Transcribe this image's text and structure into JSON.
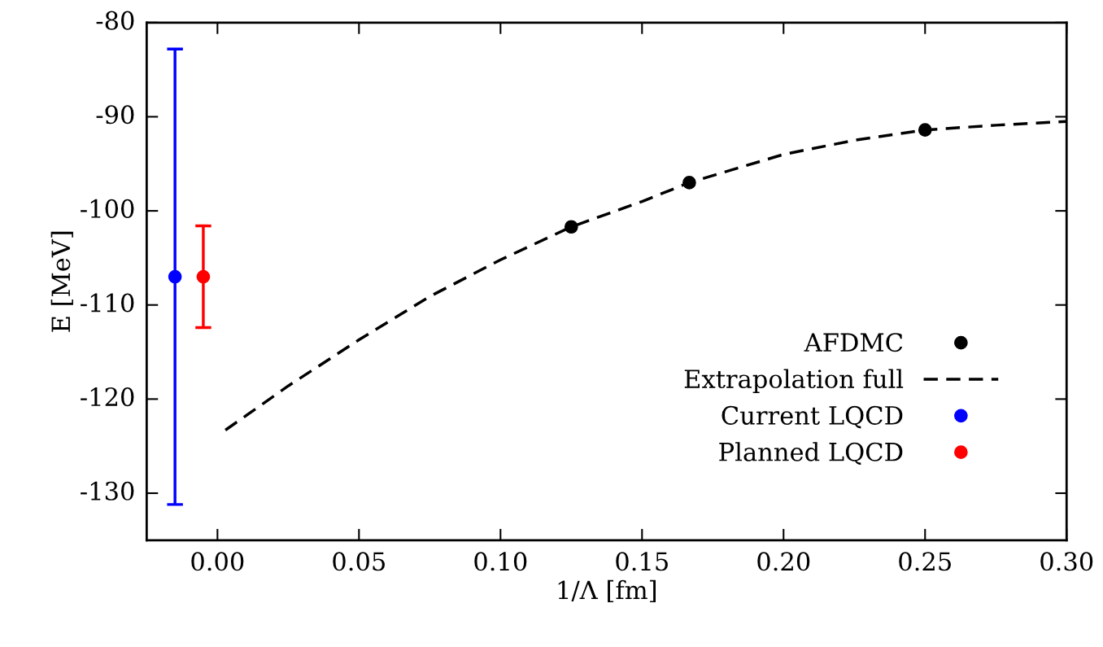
{
  "chart_data": {
    "type": "scatter",
    "xlabel": "1/Λ [fm]",
    "ylabel": "E [MeV]",
    "xlim": [
      -0.025,
      0.3
    ],
    "xticks": [
      {
        "value": 0,
        "label": "0.00"
      },
      0.05,
      {
        "value": 0.1,
        "label": "0.10"
      },
      0.15,
      {
        "value": 0.2,
        "label": "0.20"
      },
      0.25,
      {
        "value": 0.3,
        "label": "0.30"
      }
    ],
    "ylim": [
      -135,
      -80
    ],
    "yticks": [
      -130,
      -120,
      -110,
      -100,
      -90,
      -80
    ],
    "grid": false,
    "legend": "bottom right",
    "series": [
      {
        "name": "AFDMC",
        "color": "#000000",
        "marker": "circle",
        "x": [
          0.125,
          0.1667,
          0.25
        ],
        "values": [
          -101.7,
          -97.0,
          -91.4
        ]
      },
      {
        "name": "Extrapolation full",
        "type": "line",
        "color": "#000000",
        "line_style": "dashed",
        "marker": "none",
        "x": [
          0.0028,
          0.025,
          0.05,
          0.075,
          0.1,
          0.125,
          0.15,
          0.1667,
          0.2,
          0.225,
          0.25,
          0.275,
          0.3
        ],
        "values": [
          -123.3,
          -118.6,
          -113.7,
          -109.1,
          -105.2,
          -101.7,
          -99.0,
          -97.0,
          -94.0,
          -92.5,
          -91.4,
          -90.9,
          -90.5
        ]
      },
      {
        "name": "Current LQCD",
        "color": "#0000ff",
        "marker": "circle",
        "x": [
          -0.015
        ],
        "values": [
          -107.0
        ],
        "errors": [
          [
            -131.2,
            -82.8
          ]
        ]
      },
      {
        "name": "Planned LQCD",
        "color": "#ff0000",
        "marker": "circle",
        "x": [
          -0.005
        ],
        "values": [
          -107.0
        ],
        "errors": [
          [
            -112.4,
            -101.6
          ]
        ]
      }
    ]
  }
}
